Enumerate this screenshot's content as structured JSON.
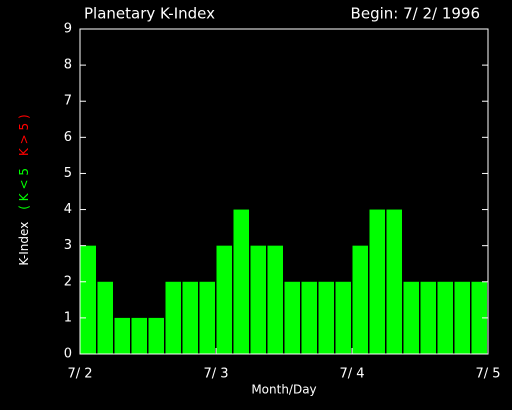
{
  "chart_data": {
    "type": "bar",
    "title": "Planetary K-Index",
    "subtitle": "Begin: 7/ 2/ 1996",
    "xlabel": "Month/Day",
    "ylabel_parts": [
      {
        "text": "K-Index",
        "color": "#ffffff"
      },
      {
        "text": "( K < 5",
        "color": "#00ff00"
      },
      {
        "text": "K > 5 )",
        "color": "#ff0000"
      }
    ],
    "categories": [
      null,
      null,
      null,
      null,
      null,
      null,
      null,
      null,
      null,
      null,
      null,
      null,
      null,
      null,
      null,
      null,
      null,
      null,
      null,
      null,
      null,
      null,
      null,
      null
    ],
    "values": [
      3,
      2,
      1,
      1,
      1,
      2,
      2,
      2,
      3,
      4,
      3,
      3,
      2,
      2,
      2,
      2,
      3,
      4,
      4,
      2,
      2,
      2,
      2,
      2
    ],
    "color": "#00ff00",
    "xlim": [
      0,
      3
    ],
    "xticks": [
      {
        "value": 0,
        "label": "7/ 2"
      },
      {
        "value": 1,
        "label": "7/ 3"
      },
      {
        "value": 2,
        "label": "7/ 4"
      },
      {
        "value": 3,
        "label": "7/ 5"
      }
    ],
    "ylim": [
      0,
      9
    ],
    "yticks": [
      0,
      1,
      2,
      3,
      4,
      5,
      6,
      7,
      8,
      9
    ]
  }
}
